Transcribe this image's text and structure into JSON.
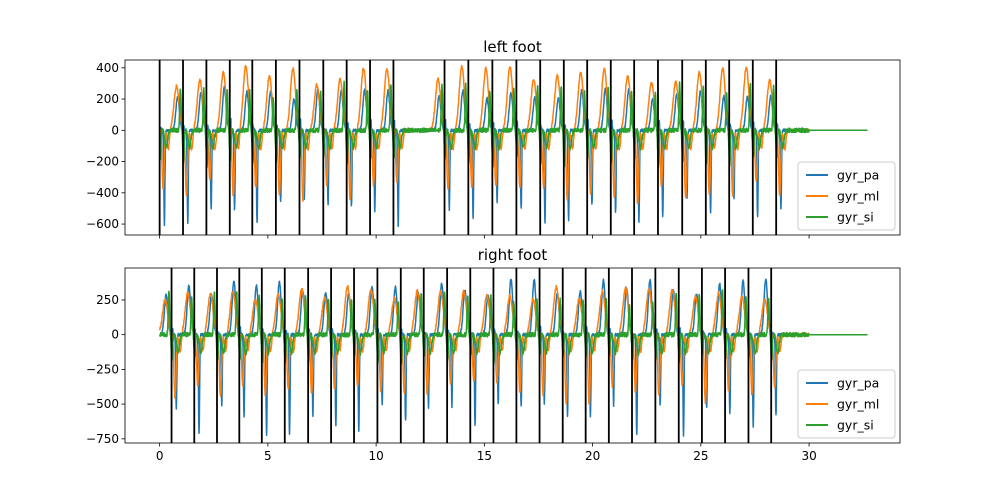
{
  "chart_data": [
    {
      "type": "line",
      "title": "left foot",
      "xlim": [
        -1.6,
        34.2
      ],
      "ylim": [
        -670,
        450
      ],
      "xticks": [
        0,
        5,
        10,
        15,
        20,
        25,
        30
      ],
      "show_xtick_labels": false,
      "yticks": [
        -600,
        -400,
        -200,
        0,
        200,
        400
      ],
      "legend": "lower-right",
      "grid": false,
      "event_lines": [
        0.0,
        1.08,
        2.16,
        3.24,
        4.28,
        5.37,
        6.46,
        7.56,
        8.64,
        9.72,
        10.8,
        13.16,
        14.26,
        15.37,
        16.48,
        17.58,
        18.67,
        19.75,
        20.84,
        21.92,
        23.02,
        24.14,
        25.23,
        26.31,
        27.4,
        28.48
      ],
      "series": [
        {
          "name": "gyr_pa",
          "color": "#1f77b4",
          "peak": 250,
          "trough": -590,
          "impulse": 150,
          "noise": 8
        },
        {
          "name": "gyr_ml",
          "color": "#ff7f0e",
          "peak": 375,
          "trough": -450,
          "impulse": 0,
          "noise": 10
        },
        {
          "name": "gyr_si",
          "color": "#2ca02c",
          "peak": 280,
          "trough": -190,
          "impulse": 230,
          "noise": 14
        }
      ],
      "signal_end": 30.0,
      "x_end": 32.7
    },
    {
      "type": "line",
      "title": "right foot",
      "xlim": [
        -1.6,
        34.2
      ],
      "ylim": [
        -780,
        480
      ],
      "xticks": [
        0,
        5,
        10,
        15,
        20,
        25,
        30
      ],
      "show_xtick_labels": true,
      "yticks": [
        -750,
        -500,
        -250,
        0,
        250
      ],
      "legend": "lower-right",
      "grid": false,
      "event_lines": [
        0.55,
        1.6,
        2.65,
        3.68,
        4.72,
        5.78,
        6.86,
        7.92,
        8.98,
        10.06,
        11.14,
        12.2,
        13.28,
        14.35,
        15.42,
        16.48,
        17.55,
        18.62,
        19.68,
        20.75,
        21.82,
        22.9,
        23.98,
        25.05,
        26.12,
        27.2,
        28.25
      ],
      "series": [
        {
          "name": "gyr_pa",
          "color": "#1f77b4",
          "peak": 370,
          "trough": -700,
          "impulse": 120,
          "noise": 10
        },
        {
          "name": "gyr_ml",
          "color": "#ff7f0e",
          "peak": 330,
          "trough": -480,
          "impulse": 0,
          "noise": 12
        },
        {
          "name": "gyr_si",
          "color": "#2ca02c",
          "peak": 300,
          "trough": -220,
          "impulse": 200,
          "noise": 16
        }
      ],
      "signal_end": 30.0,
      "x_end": 32.7
    }
  ]
}
